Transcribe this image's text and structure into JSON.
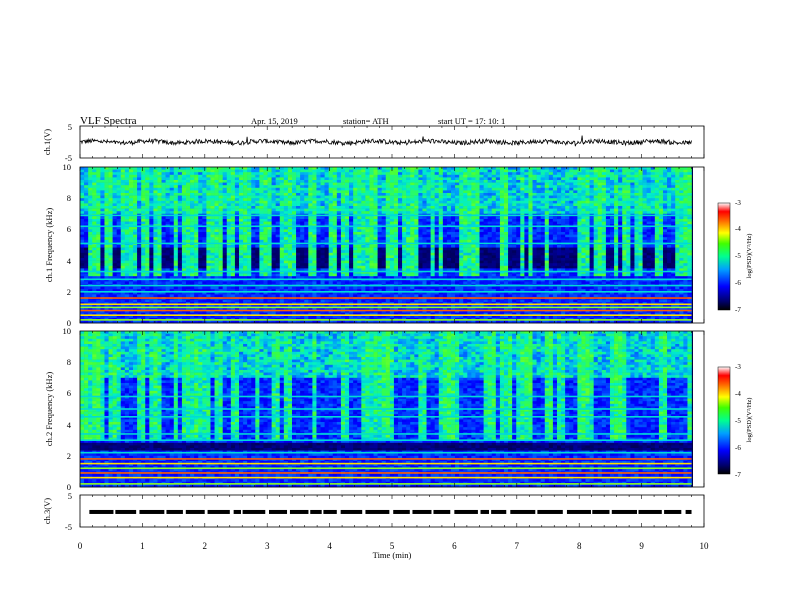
{
  "header": {
    "title": "VLF  Spectra",
    "date": "Apr. 15, 2019",
    "station": "station= ATH",
    "start": "start  UT  =    17: 10: 1"
  },
  "chart_data": [
    {
      "type": "line",
      "panel": "ch1-waveform",
      "ylabel": "ch.1(V)",
      "y_ticks": [
        "5",
        "-5"
      ],
      "ylim": [
        -5,
        5
      ],
      "x_range": [
        0,
        10
      ],
      "approx_level": 0
    },
    {
      "type": "heatmap",
      "panel": "ch1-spectrogram",
      "ylabel": "ch.1 Frequency (kHz)",
      "y_ticks": [
        "0",
        "2",
        "4",
        "6",
        "8",
        "10"
      ],
      "ylim": [
        0,
        10
      ],
      "x_range": [
        0,
        9.8
      ],
      "colorbar": {
        "label": "log(PSD)(V²/Hz)",
        "range": [
          -7,
          -3
        ],
        "ticks": [
          "-3",
          "-4",
          "-5",
          "-6",
          "-7"
        ]
      },
      "bands_khz": [
        0.2,
        0.5,
        0.8,
        1.0,
        1.2,
        1.6,
        2.0,
        2.4,
        2.8,
        3.3,
        5.1,
        6.2,
        6.9
      ],
      "quiet_band_khz": [
        3.5,
        4.8
      ]
    },
    {
      "type": "heatmap",
      "panel": "ch2-spectrogram",
      "ylabel": "ch.2 Frequency (kHz)",
      "y_ticks": [
        "0",
        "2",
        "4",
        "6",
        "8",
        "10"
      ],
      "ylim": [
        0,
        10
      ],
      "x_range": [
        0,
        9.8
      ],
      "colorbar": {
        "label": "log(PSD)(V²/Hz)",
        "range": [
          -7,
          -3
        ],
        "ticks": [
          "-3",
          "-4",
          "-5",
          "-6",
          "-7"
        ]
      },
      "bands_khz": [
        0.2,
        0.6,
        0.9,
        1.2,
        1.5,
        1.8,
        2.2,
        3.0,
        3.4,
        4.5,
        5.0,
        5.8
      ],
      "quiet_band_khz": [
        2.4,
        2.8
      ]
    },
    {
      "type": "line",
      "panel": "ch3-signal",
      "ylabel": "ch.3(V)",
      "y_ticks": [
        "5",
        "-5"
      ],
      "ylim": [
        -5,
        5
      ],
      "x_range": [
        0,
        10
      ],
      "approx_level": -0.3
    }
  ],
  "xaxis": {
    "label": "Time  (min)",
    "ticks": [
      "0",
      "1",
      "2",
      "3",
      "4",
      "5",
      "6",
      "7",
      "8",
      "9",
      "10"
    ]
  }
}
